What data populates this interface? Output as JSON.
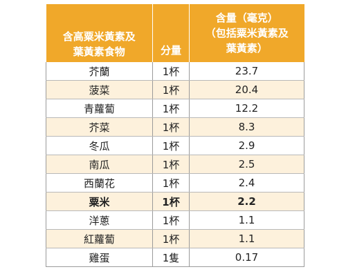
{
  "table": {
    "headers": {
      "food": [
        "含高粟米黃素及",
        "葉黃素食物"
      ],
      "quantity": "分量",
      "amount": [
        "含量（毫克）",
        "（包括粟米黃素及",
        "葉黃素）"
      ]
    },
    "rows": [
      {
        "food": "芥蘭",
        "quantity": "1杯",
        "amount": "23.7"
      },
      {
        "food": "菠菜",
        "quantity": "1杯",
        "amount": "20.4"
      },
      {
        "food": "青蘿蔔",
        "quantity": "1杯",
        "amount": "12.2"
      },
      {
        "food": "芥菜",
        "quantity": "1杯",
        "amount": "8.3"
      },
      {
        "food": "冬瓜",
        "quantity": "1杯",
        "amount": "2.9"
      },
      {
        "food": "南瓜",
        "quantity": "1杯",
        "amount": "2.5"
      },
      {
        "food": "西蘭花",
        "quantity": "1杯",
        "amount": "2.4"
      },
      {
        "food": "粟米",
        "quantity": "1杯",
        "amount": "2.2",
        "bold": true
      },
      {
        "food": "洋蔥",
        "quantity": "1杯",
        "amount": "1.1"
      },
      {
        "food": "紅蘿蔔",
        "quantity": "1杯",
        "amount": "1.1"
      },
      {
        "food": "雞蛋",
        "quantity": "1隻",
        "amount": "0.17"
      }
    ]
  },
  "colors": {
    "header_background": "#f0a82a",
    "stripe_background": "#fdf1dc"
  }
}
